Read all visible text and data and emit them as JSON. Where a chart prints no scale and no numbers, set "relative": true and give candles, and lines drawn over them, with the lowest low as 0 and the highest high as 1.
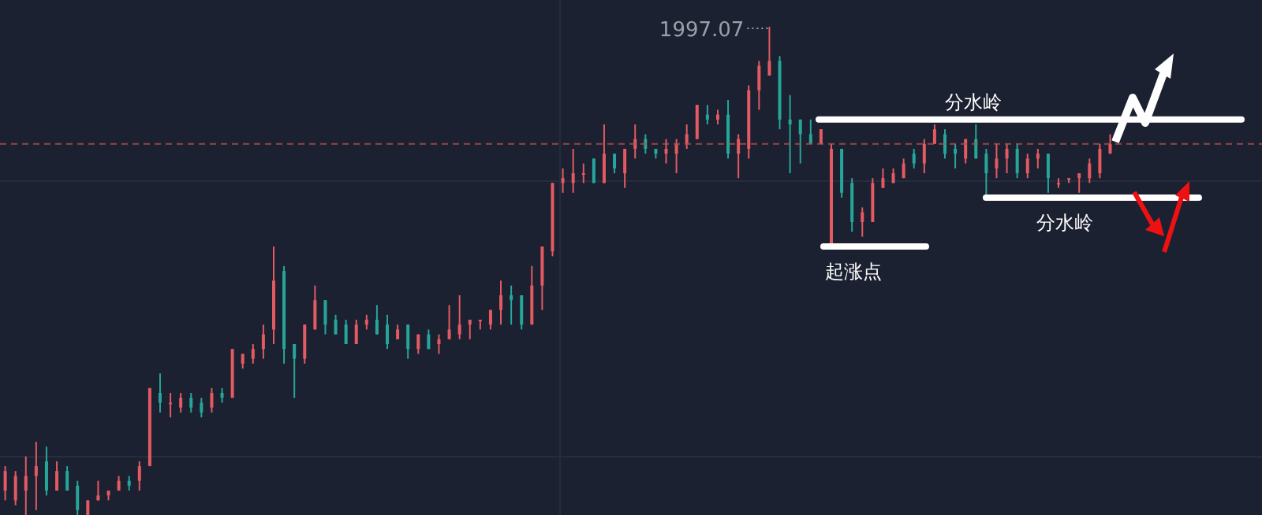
{
  "chart_data": {
    "type": "candlestick",
    "relative": true,
    "categories": [
      null,
      null,
      null,
      null,
      null,
      null,
      null,
      null,
      null,
      null,
      null,
      null,
      null,
      null,
      null,
      null,
      null,
      null,
      null,
      null,
      null,
      null,
      null,
      null,
      null,
      null,
      null,
      null,
      null,
      null,
      null,
      null,
      null,
      null,
      null,
      null,
      null,
      null,
      null,
      null,
      null,
      null,
      null,
      null,
      null,
      null,
      null,
      null,
      null,
      null,
      null,
      null,
      null,
      null,
      null,
      null,
      null,
      null,
      null,
      null,
      null,
      null,
      null,
      null,
      null,
      null,
      null,
      null,
      null,
      null,
      null,
      null,
      null,
      null,
      null,
      null,
      null,
      null,
      null,
      null,
      null,
      null,
      null,
      null,
      null,
      null,
      null,
      null,
      null,
      null,
      null,
      null,
      null,
      null,
      null,
      null,
      null,
      null,
      null,
      null,
      null,
      null,
      null,
      null,
      null,
      null,
      null,
      null
    ],
    "ohlc": [
      [
        0.05,
        0.1,
        0.03,
        0.09
      ],
      [
        0.03,
        0.09,
        0.02,
        0.08
      ],
      [
        0.05,
        0.12,
        0,
        0.08
      ],
      [
        0.08,
        0.15,
        0.01,
        0.1
      ],
      [
        0.11,
        0.14,
        0.04,
        0.05
      ],
      [
        0.05,
        0.11,
        0.05,
        0.09
      ],
      [
        0.09,
        0.1,
        0.05,
        0.05
      ],
      [
        0.06,
        0.07,
        0,
        0.01
      ],
      [
        0,
        0.03,
        0,
        0.03
      ],
      [
        0.03,
        0.07,
        0.03,
        0.04
      ],
      [
        0.04,
        0.05,
        0.03,
        0.05
      ],
      [
        0.05,
        0.08,
        0.05,
        0.07
      ],
      [
        0.07,
        0.08,
        0.05,
        0.06
      ],
      [
        0.07,
        0.11,
        0.05,
        0.1
      ],
      [
        0.1,
        0.26,
        0.1,
        0.26
      ],
      [
        0.25,
        0.29,
        0.21,
        0.23
      ],
      [
        0.23,
        0.25,
        0.2,
        0.23
      ],
      [
        0.22,
        0.25,
        0.21,
        0.24
      ],
      [
        0.24,
        0.25,
        0.21,
        0.22
      ],
      [
        0.23,
        0.24,
        0.2,
        0.21
      ],
      [
        0.22,
        0.26,
        0.21,
        0.25
      ],
      [
        0.25,
        0.26,
        0.23,
        0.24
      ],
      [
        0.24,
        0.34,
        0.24,
        0.34
      ],
      [
        0.31,
        0.33,
        0.3,
        0.33
      ],
      [
        0.32,
        0.35,
        0.31,
        0.34
      ],
      [
        0.34,
        0.39,
        0.32,
        0.37
      ],
      [
        0.38,
        0.55,
        0.35,
        0.48
      ],
      [
        0.5,
        0.51,
        0.31,
        0.34
      ],
      [
        0.35,
        0.35,
        0.24,
        0.32
      ],
      [
        0.32,
        0.39,
        0.31,
        0.39
      ],
      [
        0.38,
        0.47,
        0.38,
        0.44
      ],
      [
        0.44,
        0.44,
        0.37,
        0.39
      ],
      [
        0.4,
        0.41,
        0.37,
        0.37
      ],
      [
        0.39,
        0.4,
        0.35,
        0.35
      ],
      [
        0.35,
        0.4,
        0.35,
        0.39
      ],
      [
        0.39,
        0.41,
        0.38,
        0.4
      ],
      [
        0.4,
        0.43,
        0.37,
        0.37
      ],
      [
        0.39,
        0.41,
        0.34,
        0.35
      ],
      [
        0.36,
        0.39,
        0.36,
        0.38
      ],
      [
        0.39,
        0.39,
        0.32,
        0.34
      ],
      [
        0.34,
        0.37,
        0.33,
        0.37
      ],
      [
        0.37,
        0.38,
        0.34,
        0.34
      ],
      [
        0.35,
        0.37,
        0.33,
        0.36
      ],
      [
        0.36,
        0.43,
        0.36,
        0.38
      ],
      [
        0.37,
        0.45,
        0.36,
        0.39
      ],
      [
        0.39,
        0.4,
        0.36,
        0.4
      ],
      [
        0.4,
        0.4,
        0.38,
        0.4
      ],
      [
        0.39,
        0.42,
        0.38,
        0.42
      ],
      [
        0.42,
        0.48,
        0.39,
        0.45
      ],
      [
        0.45,
        0.47,
        0.39,
        0.44
      ],
      [
        0.45,
        0.45,
        0.38,
        0.39
      ],
      [
        0.39,
        0.51,
        0.39,
        0.47
      ],
      [
        0.47,
        0.55,
        0.42,
        0.55
      ],
      [
        0.54,
        0.68,
        0.53,
        0.68
      ],
      [
        0.68,
        0.71,
        0.66,
        0.69
      ],
      [
        0.68,
        0.75,
        0.66,
        0.7
      ],
      [
        0.7,
        0.72,
        0.68,
        0.7
      ],
      [
        0.73,
        0.73,
        0.68,
        0.68
      ],
      [
        0.68,
        0.8,
        0.68,
        0.74
      ],
      [
        0.74,
        0.74,
        0.7,
        0.71
      ],
      [
        0.7,
        0.75,
        0.67,
        0.75
      ],
      [
        0.75,
        0.8,
        0.73,
        0.77
      ],
      [
        0.77,
        0.78,
        0.74,
        0.75
      ],
      [
        0.75,
        0.75,
        0.73,
        0.74
      ],
      [
        0.74,
        0.77,
        0.72,
        0.75
      ],
      [
        0.74,
        0.77,
        0.7,
        0.76
      ],
      [
        0.76,
        0.8,
        0.75,
        0.78
      ],
      [
        0.77,
        0.84,
        0.77,
        0.84
      ],
      [
        0.82,
        0.84,
        0.8,
        0.81
      ],
      [
        0.81,
        0.83,
        0.8,
        0.82
      ],
      [
        0.82,
        0.85,
        0.73,
        0.74
      ],
      [
        0.74,
        0.78,
        0.69,
        0.77
      ],
      [
        0.75,
        0.88,
        0.73,
        0.87
      ],
      [
        0.87,
        0.93,
        0.83,
        0.92
      ],
      [
        0.9,
        1,
        0.9,
        0.93
      ],
      [
        0.93,
        0.94,
        0.79,
        0.81
      ],
      [
        0.81,
        0.86,
        0.7,
        0.8
      ],
      [
        0.81,
        0.81,
        0.72,
        0.78
      ],
      [
        0.78,
        0.81,
        0.76,
        0.76
      ],
      [
        0.76,
        0.79,
        0.76,
        0.79
      ],
      [
        0.55,
        0.76,
        0.55,
        0.75
      ],
      [
        0.75,
        0.75,
        0.65,
        0.66
      ],
      [
        0.68,
        0.69,
        0.58,
        0.6
      ],
      [
        0.6,
        0.63,
        0.57,
        0.62
      ],
      [
        0.6,
        0.69,
        0.6,
        0.68
      ],
      [
        0.67,
        0.71,
        0.67,
        0.69
      ],
      [
        0.68,
        0.71,
        0.68,
        0.7
      ],
      [
        0.69,
        0.73,
        0.69,
        0.72
      ],
      [
        0.74,
        0.75,
        0.71,
        0.72
      ],
      [
        0.72,
        0.77,
        0.7,
        0.76
      ],
      [
        0.76,
        0.8,
        0.76,
        0.79
      ],
      [
        0.78,
        0.79,
        0.73,
        0.74
      ],
      [
        0.75,
        0.76,
        0.71,
        0.74
      ],
      [
        0.73,
        0.77,
        0.72,
        0.77
      ],
      [
        0.77,
        0.8,
        0.73,
        0.73
      ],
      [
        0.74,
        0.75,
        0.65,
        0.7
      ],
      [
        0.71,
        0.76,
        0.69,
        0.73
      ],
      [
        0.73,
        0.76,
        0.7,
        0.75
      ],
      [
        0.75,
        0.76,
        0.69,
        0.7
      ],
      [
        0.7,
        0.74,
        0.69,
        0.73
      ],
      [
        0.73,
        0.75,
        0.71,
        0.74
      ],
      [
        0.74,
        0.74,
        0.66,
        0.69
      ],
      [
        0.68,
        0.69,
        0.67,
        0.68
      ],
      [
        0.69,
        0.69,
        0.68,
        0.69
      ],
      [
        0.69,
        0.7,
        0.66,
        0.7
      ],
      [
        0.69,
        0.73,
        0.68,
        0.72
      ],
      [
        0.7,
        0.76,
        0.69,
        0.75
      ],
      [
        0.74,
        0.78,
        0.74,
        0.76
      ]
    ],
    "annotations": [
      "1997.07"
    ],
    "ref_lines": [
      {
        "axis": "y",
        "value": 0.81,
        "label": "分水岭",
        "color": "#ffffff"
      },
      {
        "axis": "y",
        "value": 0.65,
        "label": "分水岭",
        "color": "#ffffff"
      },
      {
        "axis": "y",
        "value": 0.55,
        "label": "起涨点",
        "color": "#ffffff"
      },
      {
        "axis": "y",
        "value": 0.76,
        "color": "#b4504f",
        "line_style": "dashed"
      }
    ]
  }
}
